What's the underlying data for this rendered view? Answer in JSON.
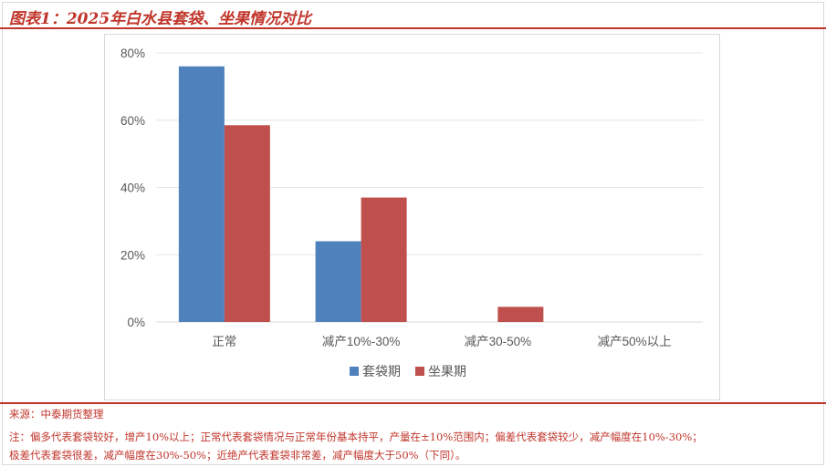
{
  "header": {
    "title": "图表1：2025年白水县套袋、坐果情况对比"
  },
  "chart_data": {
    "type": "bar",
    "categories": [
      "正常",
      "减产10%-30%",
      "减产30-50%",
      "减产50%以上"
    ],
    "series": [
      {
        "name": "套袋期",
        "values": [
          76,
          24,
          0,
          0
        ],
        "color": "#4f81bd"
      },
      {
        "name": "坐果期",
        "values": [
          58.5,
          37,
          4.5,
          0
        ],
        "color": "#c0504d"
      }
    ],
    "ylim": [
      0,
      80
    ],
    "yticks": [
      "0%",
      "20%",
      "40%",
      "60%",
      "80%"
    ],
    "ytick_values": [
      0,
      20,
      40,
      60,
      80
    ],
    "grid": true,
    "legend_position": "bottom"
  },
  "footer": {
    "source": "来源：中泰期货整理",
    "note_line1": "注：偏多代表套袋较好，增产10%以上；正常代表套袋情况与正常年份基本持平，产量在±10%范围内；偏差代表套袋较少，减产幅度在10%-30%；",
    "note_line2": "极差代表套袋很差，减产幅度在30%-50%；近绝产代表套袋非常差，减产幅度大于50%（下同）。"
  }
}
